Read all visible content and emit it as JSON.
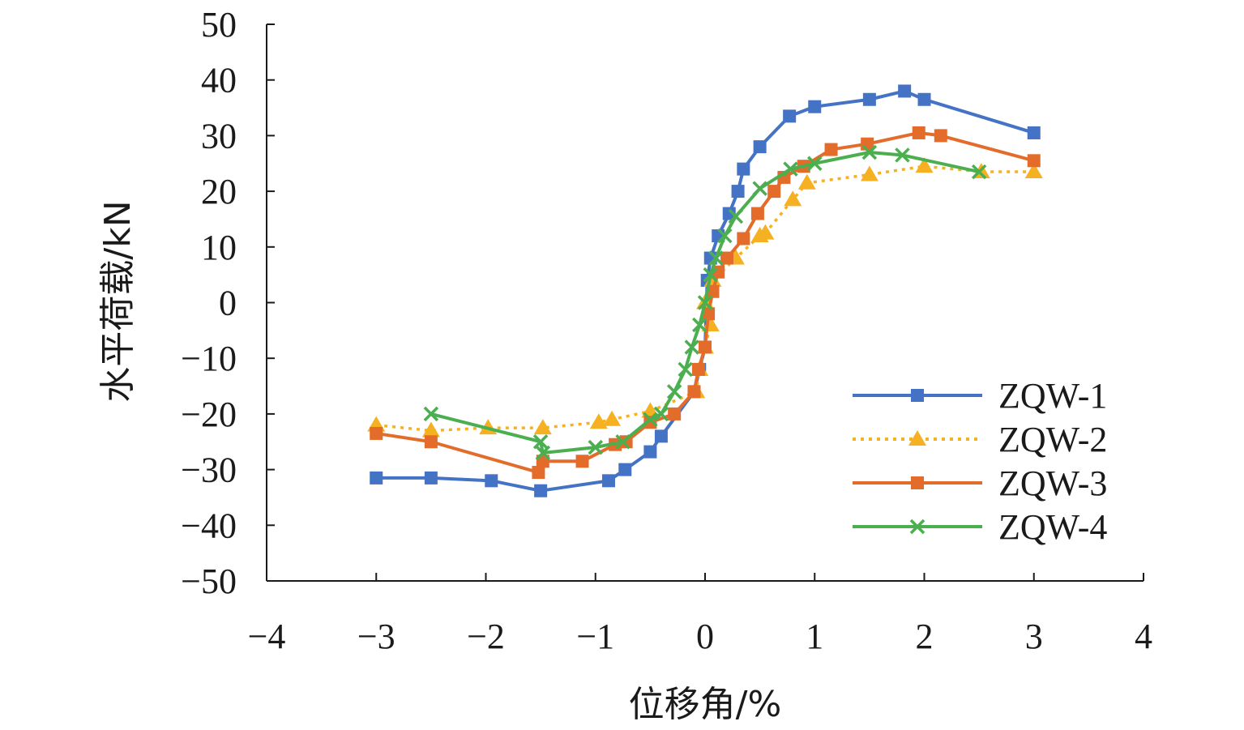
{
  "chart_data": {
    "type": "line",
    "title": "",
    "xlabel": "位移角/%",
    "ylabel": "水平荷载/kN",
    "xlim": [
      -4,
      4
    ],
    "ylim": [
      -50,
      50
    ],
    "xticks": [
      -4,
      -3,
      -2,
      -1,
      0,
      1,
      2,
      3,
      4
    ],
    "xtick_labels": [
      "−4",
      "−3",
      "−2",
      "−1",
      "0",
      "1",
      "2",
      "3",
      "4"
    ],
    "yticks": [
      50,
      40,
      30,
      20,
      10,
      0,
      -10,
      -20,
      -30,
      -40,
      -50
    ],
    "ytick_labels": [
      "50",
      "40",
      "30",
      "20",
      "10",
      "0",
      "−10",
      "−20",
      "−30",
      "−40",
      "−50"
    ],
    "grid": false,
    "legend_position": "bottom-right",
    "series": [
      {
        "name": "ZQW-1",
        "color": "#4472C4",
        "marker": "square",
        "line_style": "solid",
        "points": [
          [
            -3.0,
            -31.5
          ],
          [
            -2.5,
            -31.5
          ],
          [
            -1.95,
            -32
          ],
          [
            -1.5,
            -33.8
          ],
          [
            -0.88,
            -32
          ],
          [
            -0.73,
            -30
          ],
          [
            -0.5,
            -26.8
          ],
          [
            -0.4,
            -24
          ],
          [
            -0.1,
            -16
          ],
          [
            -0.05,
            -12
          ],
          [
            0.0,
            -8
          ],
          [
            0.02,
            4
          ],
          [
            0.05,
            8
          ],
          [
            0.12,
            12
          ],
          [
            0.22,
            16
          ],
          [
            0.3,
            20
          ],
          [
            0.35,
            24
          ],
          [
            0.5,
            28
          ],
          [
            0.77,
            33.5
          ],
          [
            1.0,
            35.2
          ],
          [
            1.5,
            36.5
          ],
          [
            1.82,
            38
          ],
          [
            2.0,
            36.5
          ],
          [
            3.0,
            30.5
          ]
        ]
      },
      {
        "name": "ZQW-2",
        "color": "#F6B122",
        "marker": "triangle",
        "line_style": "dotted",
        "points": [
          [
            -3.0,
            -22
          ],
          [
            -2.5,
            -23
          ],
          [
            -1.98,
            -22.5
          ],
          [
            -1.48,
            -22.5
          ],
          [
            -0.97,
            -21.5
          ],
          [
            -0.85,
            -21
          ],
          [
            -0.5,
            -19.5
          ],
          [
            -0.08,
            -16
          ],
          [
            -0.05,
            -12
          ],
          [
            0.0,
            -8
          ],
          [
            0.05,
            -4
          ],
          [
            0.0,
            0
          ],
          [
            0.07,
            4
          ],
          [
            0.28,
            8
          ],
          [
            0.5,
            12
          ],
          [
            0.55,
            12.5
          ],
          [
            0.8,
            18.5
          ],
          [
            0.93,
            21.5
          ],
          [
            1.5,
            23
          ],
          [
            2.0,
            24.5
          ],
          [
            2.52,
            23.5
          ],
          [
            3.0,
            23.5
          ]
        ]
      },
      {
        "name": "ZQW-3",
        "color": "#E46C2B",
        "marker": "square",
        "line_style": "solid",
        "points": [
          [
            -3.0,
            -23.5
          ],
          [
            -2.5,
            -25
          ],
          [
            -1.52,
            -30.5
          ],
          [
            -1.48,
            -28.5
          ],
          [
            -1.12,
            -28.5
          ],
          [
            -0.82,
            -25.5
          ],
          [
            -0.72,
            -25
          ],
          [
            -0.5,
            -21.5
          ],
          [
            -0.28,
            -20
          ],
          [
            -0.1,
            -16
          ],
          [
            -0.06,
            -12
          ],
          [
            0.0,
            -8
          ],
          [
            0.03,
            -2
          ],
          [
            0.07,
            2
          ],
          [
            0.12,
            5.5
          ],
          [
            0.2,
            8
          ],
          [
            0.35,
            11.5
          ],
          [
            0.48,
            16
          ],
          [
            0.63,
            20
          ],
          [
            0.72,
            22.5
          ],
          [
            0.9,
            24.5
          ],
          [
            1.15,
            27.5
          ],
          [
            1.48,
            28.5
          ],
          [
            1.95,
            30.5
          ],
          [
            2.15,
            30
          ],
          [
            3.0,
            25.5
          ]
        ]
      },
      {
        "name": "ZQW-4",
        "color": "#4CAF4F",
        "marker": "cross",
        "line_style": "solid",
        "points": [
          [
            -2.5,
            -20
          ],
          [
            -1.5,
            -25
          ],
          [
            -1.48,
            -27
          ],
          [
            -1.0,
            -26
          ],
          [
            -0.75,
            -25
          ],
          [
            -0.5,
            -21
          ],
          [
            -0.4,
            -20
          ],
          [
            -0.28,
            -16
          ],
          [
            -0.18,
            -12
          ],
          [
            -0.12,
            -8
          ],
          [
            -0.05,
            -4
          ],
          [
            0.0,
            0
          ],
          [
            0.05,
            5
          ],
          [
            0.1,
            8
          ],
          [
            0.18,
            12
          ],
          [
            0.28,
            15.5
          ],
          [
            0.5,
            20.5
          ],
          [
            0.78,
            24
          ],
          [
            1.0,
            25
          ],
          [
            1.5,
            27
          ],
          [
            1.8,
            26.5
          ],
          [
            2.5,
            23.5
          ]
        ]
      }
    ]
  }
}
